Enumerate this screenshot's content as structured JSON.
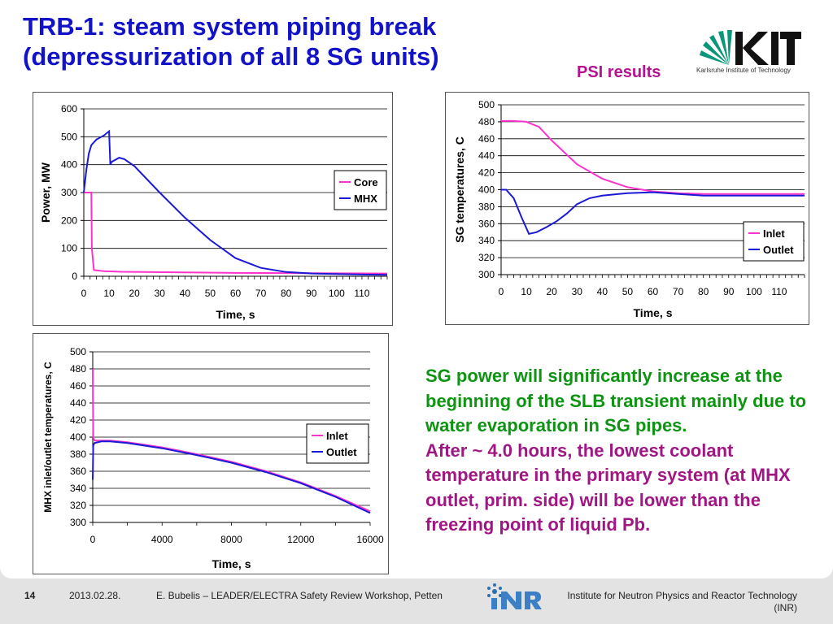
{
  "slide": {
    "title_line1": "TRB-1: steam system piping break",
    "title_line2": "(depressurization of all 8 SG units)",
    "psi_label": "PSI results",
    "kit_caption": "Karlsruhe Institute of Technology",
    "text_green": "SG power will significantly increase at the beginning of the SLB transient mainly due to water evaporation in SG pipes.",
    "text_purple": "After ~ 4.0 hours, the lowest coolant temperature in the primary system (at MHX outlet, prim. side) will be lower than the freezing point of liquid Pb."
  },
  "colors": {
    "title": "#1212c8",
    "green_text": "#0e9412",
    "purple_text": "#a01682",
    "series_magenta": "#ff33cc",
    "series_blue": "#1a1ad6"
  },
  "footer": {
    "page": "14",
    "date": "2013.02.28.",
    "event": "E. Bubelis – LEADER/ELECTRA Safety Review Workshop, Petten",
    "institute_line1": "Institute for Neutron Physics and Reactor Technology",
    "institute_line2": "(INR)"
  },
  "chart_data": [
    {
      "type": "line",
      "xlabel": "Time, s",
      "ylabel": "Power, MW",
      "xlim": [
        0,
        120
      ],
      "ylim": [
        0,
        600
      ],
      "xticks": [
        0,
        10,
        20,
        30,
        40,
        50,
        60,
        70,
        80,
        90,
        100,
        110
      ],
      "yticks": [
        0,
        100,
        200,
        300,
        400,
        500,
        600
      ],
      "legend": "right",
      "series": [
        {
          "name": "Core",
          "color": "#ff33cc",
          "x": [
            0,
            3,
            3.2,
            4,
            8,
            15,
            40,
            60,
            120
          ],
          "y": [
            300,
            300,
            100,
            22,
            18,
            16,
            14,
            12,
            10
          ]
        },
        {
          "name": "MHX",
          "color": "#1a1ad6",
          "x": [
            0,
            1,
            2,
            3,
            5,
            8,
            10,
            10.5,
            11,
            14,
            16,
            20,
            30,
            40,
            50,
            60,
            70,
            80,
            90,
            100,
            110,
            120
          ],
          "y": [
            300,
            380,
            440,
            470,
            490,
            505,
            520,
            400,
            410,
            425,
            420,
            395,
            300,
            210,
            130,
            65,
            30,
            15,
            10,
            8,
            6,
            5
          ]
        }
      ]
    },
    {
      "type": "line",
      "xlabel": "Time, s",
      "ylabel": "SG temperatures, C",
      "xlim": [
        0,
        120
      ],
      "ylim": [
        300,
        500
      ],
      "xticks": [
        0,
        10,
        20,
        30,
        40,
        50,
        60,
        70,
        80,
        90,
        100,
        110
      ],
      "yticks": [
        300,
        320,
        340,
        360,
        380,
        400,
        420,
        440,
        460,
        480,
        500
      ],
      "legend": "bottom-right",
      "series": [
        {
          "name": "Inlet",
          "color": "#ff33cc",
          "x": [
            0,
            5,
            10,
            15,
            20,
            30,
            40,
            50,
            60,
            70,
            80,
            90,
            100,
            120
          ],
          "y": [
            481,
            481,
            480,
            474,
            458,
            430,
            413,
            403,
            398,
            396,
            395,
            395,
            395,
            395
          ]
        },
        {
          "name": "Outlet",
          "color": "#1a1ad6",
          "x": [
            0,
            2,
            5,
            8,
            11,
            14,
            18,
            22,
            26,
            30,
            35,
            40,
            50,
            60,
            70,
            80,
            90,
            100,
            120
          ],
          "y": [
            400,
            400,
            390,
            368,
            348,
            350,
            356,
            363,
            372,
            383,
            390,
            393,
            396,
            397,
            395,
            393,
            393,
            393,
            393
          ]
        }
      ]
    },
    {
      "type": "line",
      "xlabel": "Time, s",
      "ylabel": "MHX inlet/outlet temperatures, C",
      "xlim": [
        0,
        16000
      ],
      "ylim": [
        300,
        500
      ],
      "xticks": [
        0,
        4000,
        8000,
        12000,
        16000
      ],
      "yticks": [
        300,
        320,
        340,
        360,
        380,
        400,
        420,
        440,
        460,
        480,
        500
      ],
      "legend": "right",
      "series": [
        {
          "name": "Inlet",
          "color": "#ff33cc",
          "x": [
            0,
            30,
            100,
            500,
            1000,
            2000,
            4000,
            6000,
            8000,
            10000,
            12000,
            14000,
            16000
          ],
          "y": [
            480,
            400,
            396,
            396,
            396,
            394,
            388,
            380,
            371,
            360,
            347,
            331,
            313
          ]
        },
        {
          "name": "Outlet",
          "color": "#1a1ad6",
          "x": [
            0,
            30,
            100,
            500,
            1000,
            2000,
            4000,
            6000,
            8000,
            10000,
            12000,
            14000,
            16000
          ],
          "y": [
            350,
            390,
            393,
            395,
            395,
            393,
            387,
            379,
            370,
            359,
            346,
            330,
            311
          ]
        }
      ]
    }
  ]
}
